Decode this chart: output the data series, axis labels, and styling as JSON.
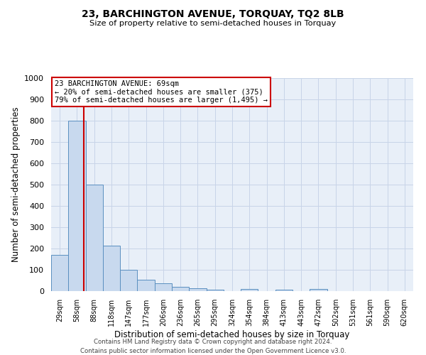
{
  "title": "23, BARCHINGTON AVENUE, TORQUAY, TQ2 8LB",
  "subtitle": "Size of property relative to semi-detached houses in Torquay",
  "xlabel": "Distribution of semi-detached houses by size in Torquay",
  "ylabel": "Number of semi-detached properties",
  "bar_labels": [
    "29sqm",
    "58sqm",
    "88sqm",
    "118sqm",
    "147sqm",
    "177sqm",
    "206sqm",
    "236sqm",
    "265sqm",
    "295sqm",
    "324sqm",
    "354sqm",
    "384sqm",
    "413sqm",
    "443sqm",
    "472sqm",
    "502sqm",
    "531sqm",
    "561sqm",
    "590sqm",
    "620sqm"
  ],
  "bar_values": [
    170,
    800,
    500,
    215,
    100,
    55,
    38,
    20,
    12,
    8,
    0,
    10,
    0,
    8,
    0,
    10,
    0,
    0,
    0,
    0,
    0
  ],
  "bar_color": "#c8d9ee",
  "bar_edge_color": "#5a8fc0",
  "ylim": [
    0,
    1000
  ],
  "yticks": [
    0,
    100,
    200,
    300,
    400,
    500,
    600,
    700,
    800,
    900,
    1000
  ],
  "annotation_title": "23 BARCHINGTON AVENUE: 69sqm",
  "annotation_line1": "← 20% of semi-detached houses are smaller (375)",
  "annotation_line2": "79% of semi-detached houses are larger (1,495) →",
  "annotation_box_facecolor": "#ffffff",
  "annotation_box_edgecolor": "#cc0000",
  "property_line_color": "#cc0000",
  "property_line_x": 1.38,
  "grid_color": "#c8d4e8",
  "plot_bg_color": "#e8eff8",
  "footer_line1": "Contains HM Land Registry data © Crown copyright and database right 2024.",
  "footer_line2": "Contains public sector information licensed under the Open Government Licence v3.0."
}
